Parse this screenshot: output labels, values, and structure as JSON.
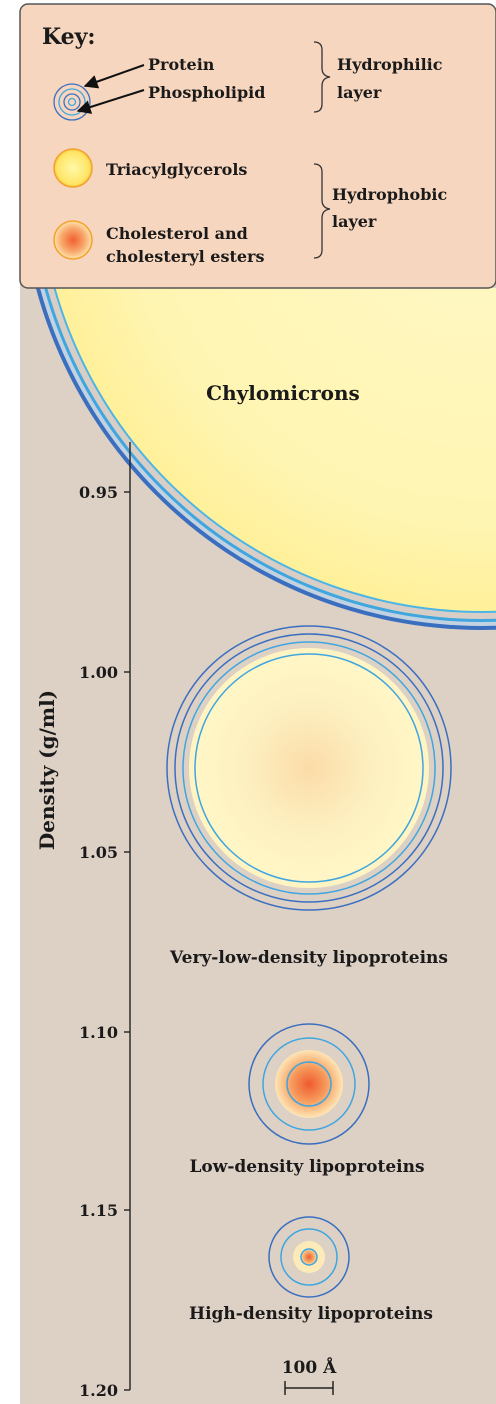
{
  "key": {
    "title": "Key:",
    "protein": "Protein",
    "phospholipid": "Phospholipid",
    "hydrophilic": [
      "Hydrophilic",
      "layer"
    ],
    "triacylglycerols": "Triacylglycerols",
    "cholesterol": [
      "Cholesterol and",
      "cholesteryl esters"
    ],
    "hydrophobic": [
      "Hydrophobic",
      "layer"
    ]
  },
  "particles": {
    "chylomicrons": "Chylomicrons",
    "vldl": "Very-low-density lipoproteins",
    "ldl": "Low-density lipoproteins",
    "hdl": "High-density lipoproteins"
  },
  "axis": {
    "label": "Density (g/ml)",
    "ticks": [
      "0.95",
      "1.00",
      "1.05",
      "1.10",
      "1.15",
      "1.20"
    ]
  },
  "scale_bar": "100 Å",
  "colors": {
    "key_bg": "#f7d6bf",
    "panel_bg": "#ddd0c5",
    "protein_ring": "#3a6fc0",
    "phospholipid_ring": "#3fa6df",
    "core_yellow": "#fff6b8",
    "core_orange": "#f2723d"
  }
}
